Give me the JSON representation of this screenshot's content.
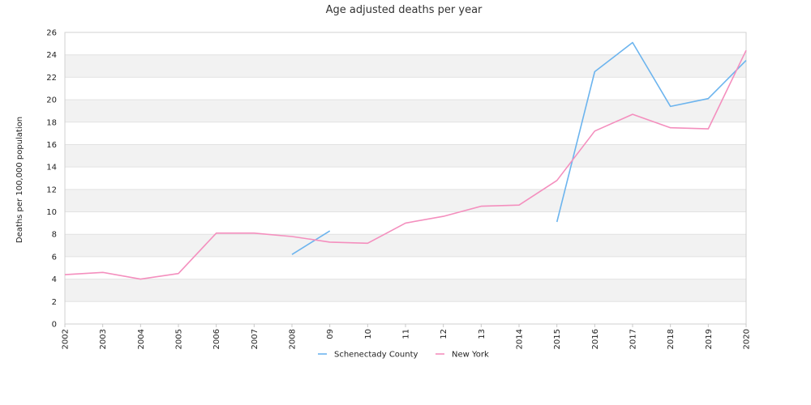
{
  "chart_data": {
    "type": "line",
    "title": "Age adjusted deaths per year",
    "xlabel": "",
    "ylabel": "Deaths per 100,000 population",
    "categories": [
      "2002",
      "2003",
      "2004",
      "2005",
      "2006",
      "2007",
      "2008",
      "09",
      "10",
      "11",
      "12",
      "13",
      "2014",
      "2015",
      "2016",
      "2017",
      "2018",
      "2019",
      "2020"
    ],
    "ylim": [
      0,
      26
    ],
    "yticks": [
      0,
      2,
      4,
      6,
      8,
      10,
      12,
      14,
      16,
      18,
      20,
      22,
      24,
      26
    ],
    "grid": "alternating horizontal bands",
    "legend_position": "bottom",
    "series": [
      {
        "name": "Schenectady County",
        "color": "#6cb4ee",
        "values": [
          null,
          null,
          null,
          null,
          null,
          null,
          6.2,
          8.3,
          null,
          null,
          null,
          null,
          null,
          9.1,
          22.5,
          25.1,
          19.4,
          20.1,
          23.5
        ]
      },
      {
        "name": "New York",
        "color": "#f48fbe",
        "values": [
          4.4,
          4.6,
          4.0,
          4.5,
          8.1,
          8.1,
          7.8,
          7.3,
          7.2,
          9.0,
          9.6,
          10.5,
          10.6,
          12.8,
          17.2,
          18.7,
          17.5,
          17.4,
          24.4
        ]
      }
    ]
  }
}
